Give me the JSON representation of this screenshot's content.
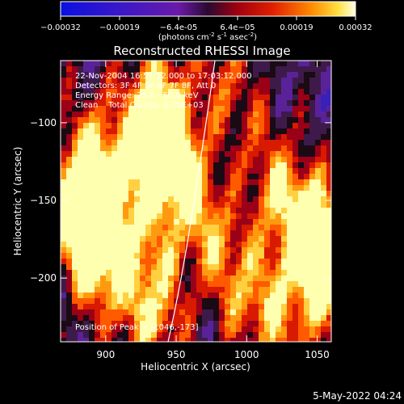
{
  "colorbar": {
    "ticks": [
      "-0.00032",
      "-0.00019",
      "-6.4e-05",
      "6.4e-05",
      "0.00019",
      "0.00032"
    ],
    "units_main": "(photons cm",
    "units_sup1": "-2",
    "units_mid1": " s",
    "units_sup2": "-1",
    "units_mid2": " asec",
    "units_sup3": "-2",
    "units_end": ")"
  },
  "title": "Reconstructed RHESSI Image",
  "info": {
    "line1": "22-Nov-2004 16:57:12.000 to 17:03:12.000",
    "line2": "Detectors: 3F 4F 5F 6F 7F 8F, Att 0",
    "line3": "Energy Range: 25.0 - 50.0 keV",
    "line4": "Clean    Total Counts: 4.75E+03",
    "peak": "Position of Peak = [1046,-173]"
  },
  "axes": {
    "xlabel": "Heliocentric X (arcsec)",
    "ylabel": "Heliocentric Y (arcsec)",
    "xticks": [
      {
        "value": 900,
        "label": "900"
      },
      {
        "value": 950,
        "label": "950"
      },
      {
        "value": 1000,
        "label": "1000"
      },
      {
        "value": 1050,
        "label": "1050"
      }
    ],
    "yticks": [
      {
        "value": -100,
        "label": "−100"
      },
      {
        "value": -150,
        "label": "−150"
      },
      {
        "value": -200,
        "label": "−200"
      }
    ],
    "xlim": [
      868,
      1060
    ],
    "ylim": [
      -241,
      -60
    ]
  },
  "timestamp": "5-May-2022 04:24"
}
